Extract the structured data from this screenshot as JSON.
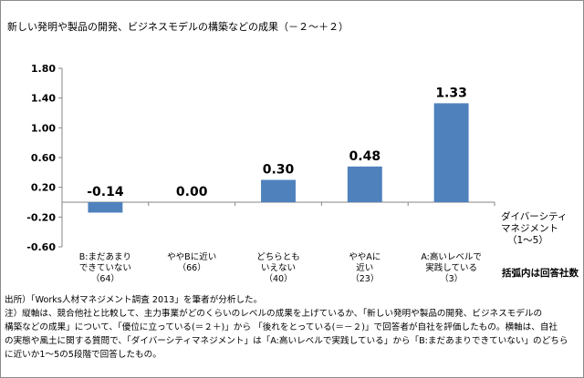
{
  "chart_data": {
    "type": "bar",
    "title": "新しい発明や製品の開発、ビジネスモデルの構築などの成果（－２～＋２）",
    "categories": [
      [
        "B:まだあまり",
        "できていない",
        "（64）"
      ],
      [
        "ややBに近い",
        "（66）"
      ],
      [
        "どちらとも",
        "いえない",
        "（40）"
      ],
      [
        "ややAに",
        "近い",
        "（23）"
      ],
      [
        "A:高いレベルで",
        "実践している",
        "（3）"
      ]
    ],
    "values": [
      -0.14,
      0.0,
      0.3,
      0.48,
      1.33
    ],
    "value_labels": [
      "-0.14",
      "0.00",
      "0.30",
      "0.48",
      "1.33"
    ],
    "ylim": [
      -0.6,
      1.8
    ],
    "yticks": [
      -0.6,
      -0.2,
      0.2,
      0.6,
      1.0,
      1.4,
      1.8
    ],
    "ytick_labels": [
      "-0.60",
      "-0.20",
      "0.20",
      "0.60",
      "1.00",
      "1.40",
      "1.80"
    ],
    "xlabel": [
      "ダイバーシティ",
      "マネジメント",
      "（1～5）"
    ],
    "ylabel": "",
    "axis_note": "括弧内は回答社数",
    "grid": false,
    "legend": "none",
    "bar_color": "#4f81bd"
  },
  "notes": [
    "出所）「Works人材マネジメント調査 2013」を筆者が分析した。",
    "注）縦軸は、競合他社と比較して、主力事業がどのくらいのレベルの成果を上げているか、「新しい発明や製品の開発、ビジネスモデルの",
    "構築などの成果」について、「優位に立っている(＝２＋)」から 「後れをとっている(＝－２)」で回答者が自社を評価したもの。横軸は、自社",
    "の実態や風土に関する質問で、「ダイバーシティマネジメント」は「A:高いレベルで実践している」から「B:まだあまりできていない」のどちら",
    "に近いか1～5の5段階で回答したもの。"
  ]
}
